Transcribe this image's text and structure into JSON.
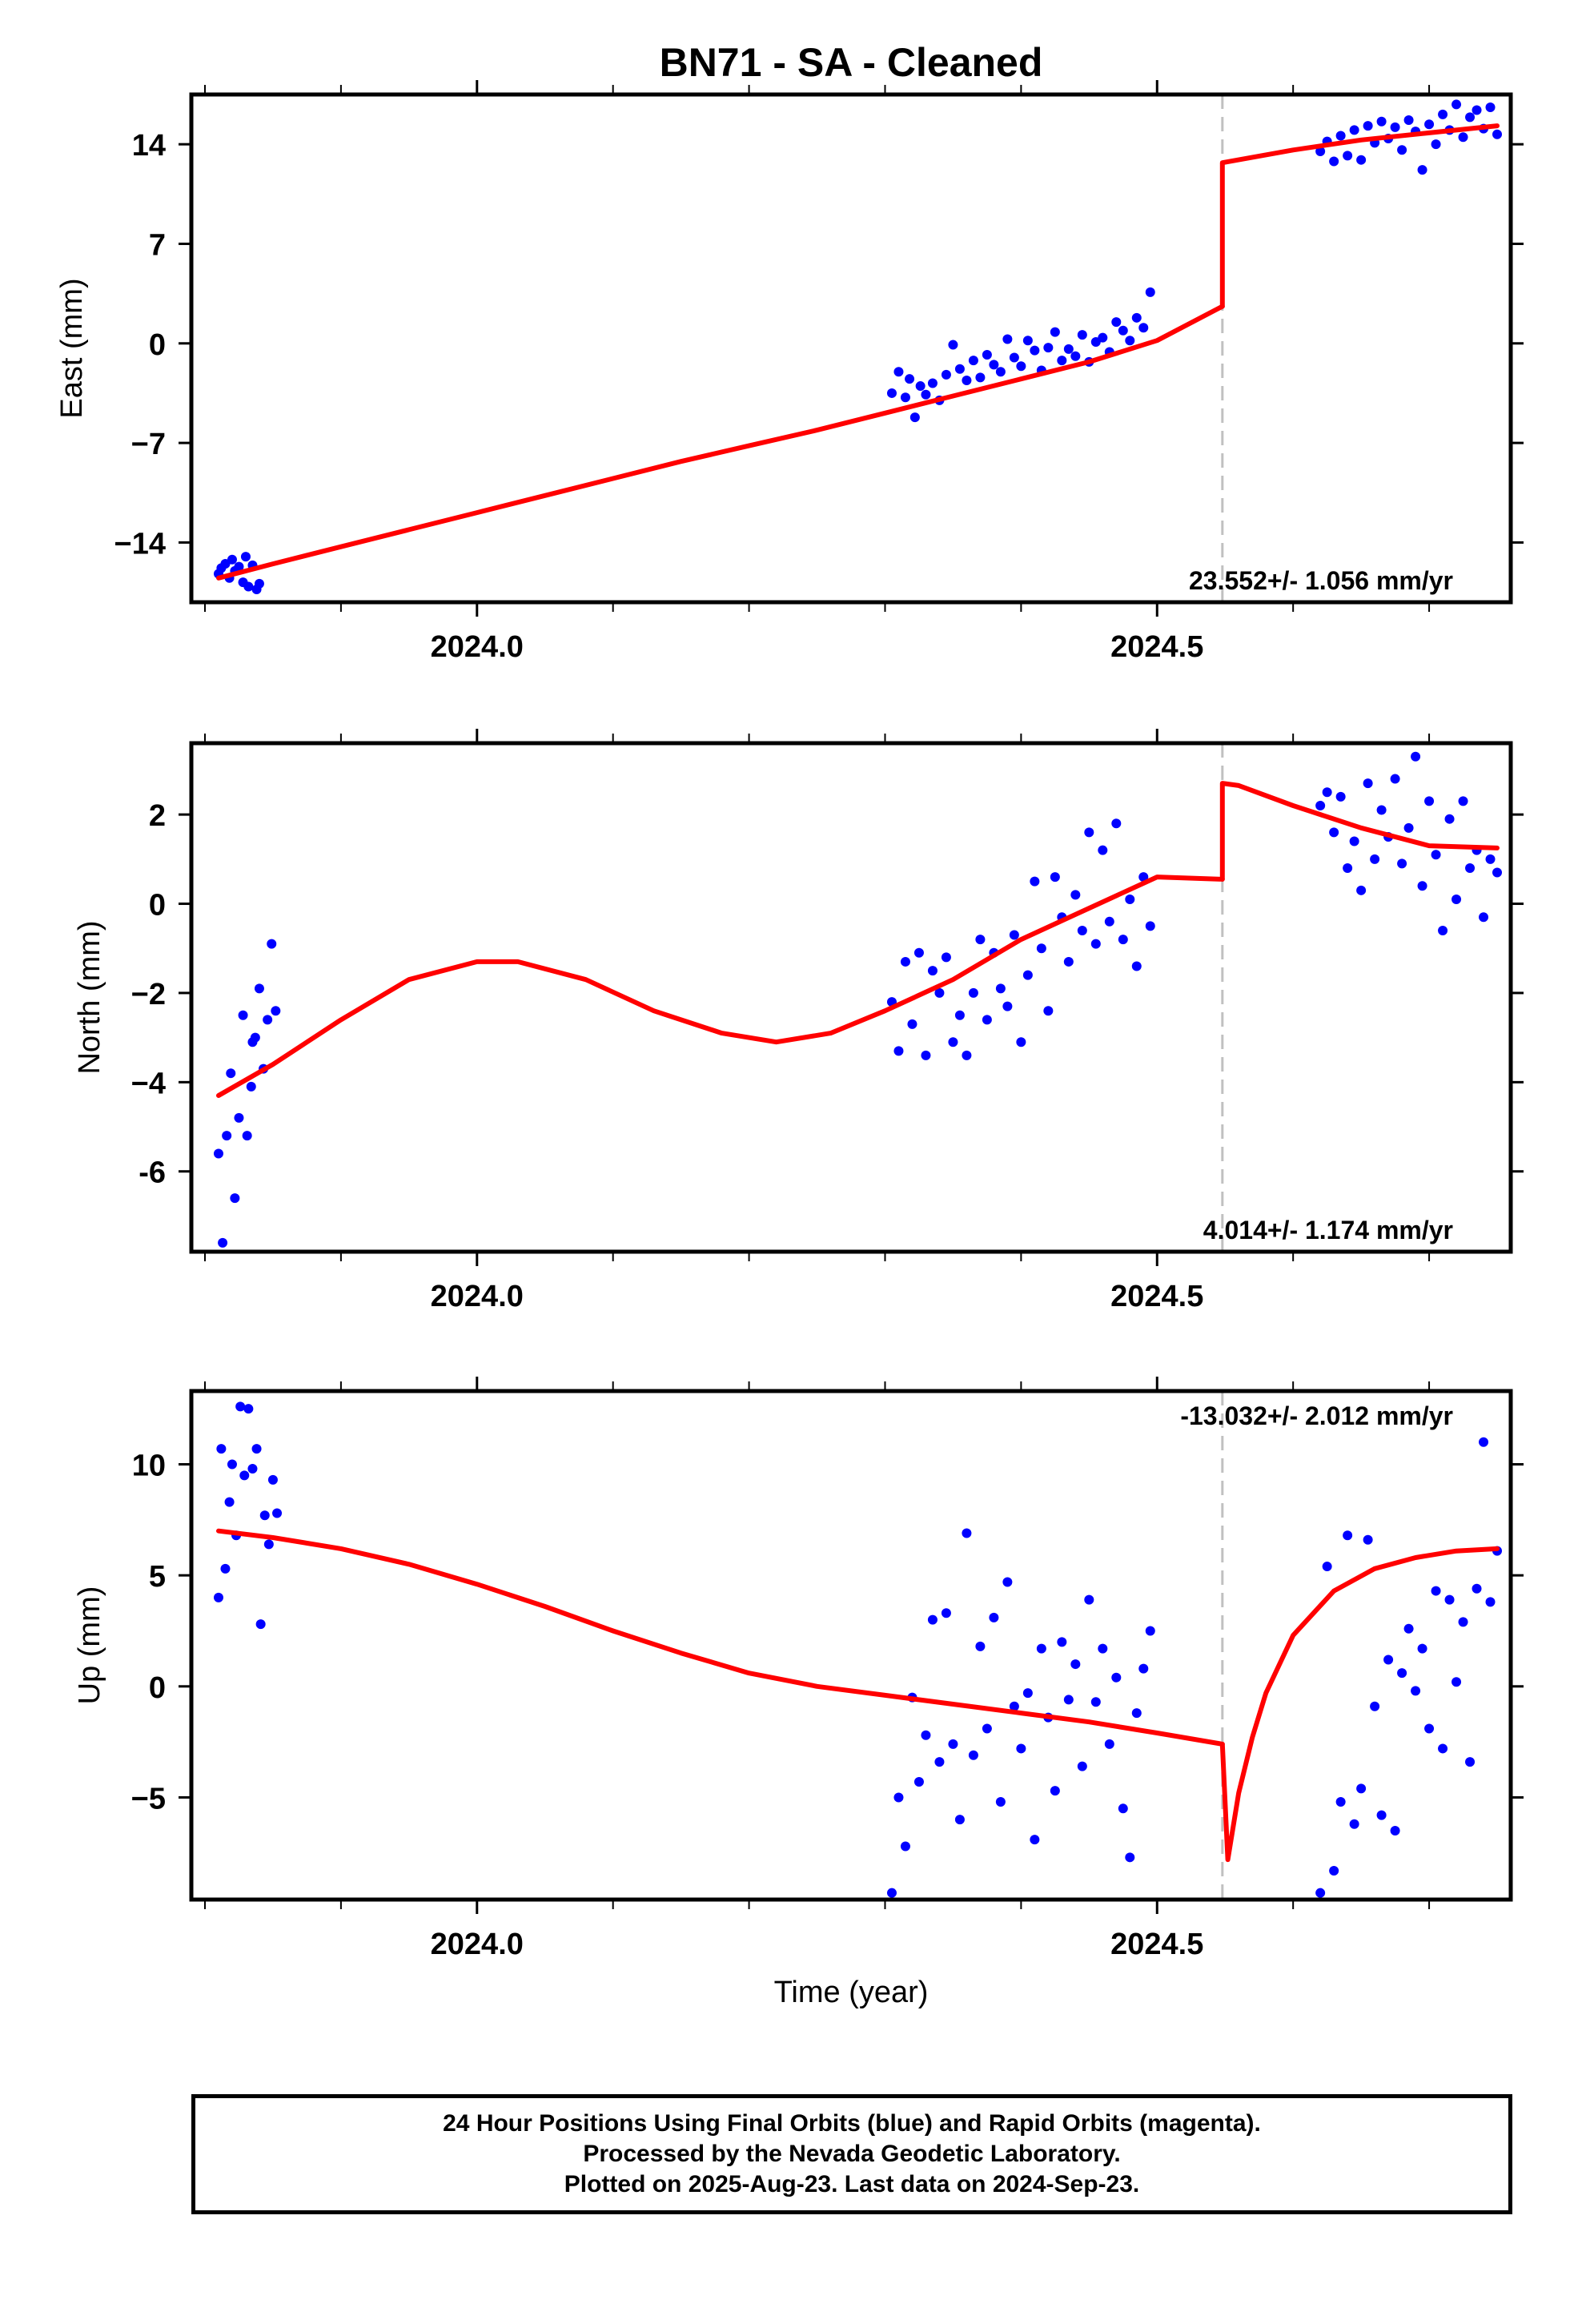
{
  "title": "BN71  - SA - Cleaned",
  "x_axis_label": "Time (year)",
  "caption": [
    "24 Hour Positions Using Final Orbits (blue) and Rapid Orbits (magenta).",
    "Processed by the Nevada Geodetic Laboratory.",
    "Plotted on 2025-Aug-23. Last data on 2024-Sep-23."
  ],
  "colors": {
    "data_points": "#0000ff",
    "model_line": "#ff0000",
    "event_line": "#c0c0c0",
    "axes": "#000000"
  },
  "chart_data": [
    {
      "type": "scatter",
      "ylabel": "East (mm)",
      "xlim": [
        2023.79,
        2024.76
      ],
      "ylim": [
        -18.2,
        17.5
      ],
      "x_ticks": [
        2024.0,
        2024.5
      ],
      "y_ticks": [
        14,
        7,
        0,
        -7,
        -14
      ],
      "y_tick_labels": [
        "14",
        "7",
        "0",
        "−7",
        "−14"
      ],
      "velocity_label": "23.552+/- 1.056 mm/yr",
      "event_x": 2024.548,
      "series": [
        {
          "kind": "points",
          "x": [
            2023.81,
            2023.812,
            2023.815,
            2023.818,
            2023.82,
            2023.822,
            2023.825,
            2023.828,
            2023.83,
            2023.832,
            2023.835,
            2023.838,
            2023.84
          ],
          "y": [
            -16.2,
            -15.8,
            -15.5,
            -16.5,
            -15.2,
            -16.0,
            -15.7,
            -16.8,
            -15.0,
            -17.1,
            -15.6,
            -17.3,
            -16.9
          ]
        },
        {
          "kind": "points",
          "x": [
            2024.305,
            2024.31,
            2024.315,
            2024.318,
            2024.322,
            2024.326,
            2024.33,
            2024.335,
            2024.34,
            2024.345,
            2024.35,
            2024.355,
            2024.36,
            2024.365,
            2024.37,
            2024.375,
            2024.38,
            2024.385,
            2024.39,
            2024.395,
            2024.4,
            2024.405,
            2024.41,
            2024.415,
            2024.42,
            2024.425,
            2024.43,
            2024.435,
            2024.44,
            2024.445,
            2024.45,
            2024.455,
            2024.46,
            2024.465,
            2024.47,
            2024.475,
            2024.48,
            2024.485,
            2024.49,
            2024.495
          ],
          "y": [
            -3.5,
            -2.0,
            -3.8,
            -2.5,
            -5.2,
            -3.0,
            -3.6,
            -2.8,
            -4.0,
            -2.2,
            -0.1,
            -1.8,
            -2.6,
            -1.2,
            -2.4,
            -0.8,
            -1.5,
            -2.0,
            0.3,
            -1.0,
            -1.6,
            0.2,
            -0.5,
            -1.9,
            -0.3,
            0.8,
            -1.2,
            -0.4,
            -0.9,
            0.6,
            -1.3,
            0.1,
            0.4,
            -0.6,
            1.5,
            0.9,
            0.2,
            1.8,
            1.1,
            3.6
          ]
        },
        {
          "kind": "points",
          "x": [
            2024.62,
            2024.625,
            2024.63,
            2024.635,
            2024.64,
            2024.645,
            2024.65,
            2024.655,
            2024.66,
            2024.665,
            2024.67,
            2024.675,
            2024.68,
            2024.685,
            2024.69,
            2024.695,
            2024.7,
            2024.705,
            2024.71,
            2024.715,
            2024.72,
            2024.725,
            2024.73,
            2024.735,
            2024.74,
            2024.745,
            2024.75
          ],
          "y": [
            13.5,
            14.2,
            12.8,
            14.6,
            13.2,
            15.0,
            12.9,
            15.3,
            14.1,
            15.6,
            14.4,
            15.2,
            13.6,
            15.7,
            14.9,
            12.2,
            15.4,
            14.0,
            16.1,
            15.0,
            16.8,
            14.5,
            15.9,
            16.4,
            15.1,
            16.6,
            14.7
          ]
        },
        {
          "kind": "line",
          "x": [
            2023.81,
            2023.85,
            2023.9,
            2023.95,
            2024.0,
            2024.05,
            2024.1,
            2024.15,
            2024.2,
            2024.25,
            2024.3,
            2024.35,
            2024.4,
            2024.45,
            2024.5,
            2024.548
          ],
          "y": [
            -16.5,
            -15.5,
            -14.3,
            -13.1,
            -11.9,
            -10.7,
            -9.5,
            -8.3,
            -7.2,
            -6.1,
            -4.9,
            -3.7,
            -2.5,
            -1.3,
            0.2,
            2.6
          ]
        },
        {
          "kind": "line",
          "x": [
            2024.548,
            2024.548,
            2024.6,
            2024.65,
            2024.7,
            2024.75
          ],
          "y": [
            2.6,
            12.7,
            13.6,
            14.3,
            14.8,
            15.3
          ]
        }
      ]
    },
    {
      "type": "scatter",
      "ylabel": "North (mm)",
      "xlim": [
        2023.79,
        2024.76
      ],
      "ylim": [
        -7.8,
        3.6
      ],
      "x_ticks": [
        2024.0,
        2024.5
      ],
      "y_ticks": [
        2,
        0,
        -2,
        -4,
        -6
      ],
      "y_tick_labels": [
        "2",
        "0",
        "−2",
        "−4",
        "-6"
      ],
      "velocity_label": "4.014+/- 1.174 mm/yr",
      "event_x": 2024.548,
      "series": [
        {
          "kind": "points",
          "x": [
            2023.81,
            2023.813,
            2023.816,
            2023.819,
            2023.822,
            2023.825,
            2023.828,
            2023.831,
            2023.834,
            2023.837,
            2023.84,
            2023.843
          ],
          "y": [
            -5.6,
            -7.6,
            -5.2,
            -3.8,
            -6.6,
            -4.8,
            -2.5,
            -5.2,
            -4.1,
            -3.0,
            -1.9,
            -3.7
          ]
        },
        {
          "kind": "points",
          "x": [
            2023.846,
            2023.849,
            2023.852,
            2023.835
          ],
          "y": [
            -2.6,
            -0.9,
            -2.4,
            -3.1
          ]
        },
        {
          "kind": "points",
          "x": [
            2024.305,
            2024.31,
            2024.315,
            2024.32,
            2024.325,
            2024.33,
            2024.335,
            2024.34,
            2024.345,
            2024.35,
            2024.355,
            2024.36,
            2024.365,
            2024.37,
            2024.375,
            2024.38,
            2024.385,
            2024.39,
            2024.395,
            2024.4,
            2024.405,
            2024.41,
            2024.415,
            2024.42,
            2024.425,
            2024.43,
            2024.435,
            2024.44,
            2024.445,
            2024.45,
            2024.455,
            2024.46,
            2024.465,
            2024.47,
            2024.475,
            2024.48,
            2024.485,
            2024.49,
            2024.495
          ],
          "y": [
            -2.2,
            -3.3,
            -1.3,
            -2.7,
            -1.1,
            -3.4,
            -1.5,
            -2.0,
            -1.2,
            -3.1,
            -2.5,
            -3.4,
            -2.0,
            -0.8,
            -2.6,
            -1.1,
            -1.9,
            -2.3,
            -0.7,
            -3.1,
            -1.6,
            0.5,
            -1.0,
            -2.4,
            0.6,
            -0.3,
            -1.3,
            0.2,
            -0.6,
            1.6,
            -0.9,
            1.2,
            -0.4,
            1.8,
            -0.8,
            0.1,
            -1.4,
            0.6,
            -0.5
          ]
        },
        {
          "kind": "points",
          "x": [
            2024.62,
            2024.625,
            2024.63,
            2024.635,
            2024.64,
            2024.645,
            2024.65,
            2024.655,
            2024.66,
            2024.665,
            2024.67,
            2024.675,
            2024.68,
            2024.685,
            2024.69,
            2024.695,
            2024.7,
            2024.705,
            2024.71,
            2024.715,
            2024.72,
            2024.725,
            2024.73,
            2024.735,
            2024.74,
            2024.745,
            2024.75
          ],
          "y": [
            2.2,
            2.5,
            1.6,
            2.4,
            0.8,
            1.4,
            0.3,
            2.7,
            1.0,
            2.1,
            1.5,
            2.8,
            0.9,
            1.7,
            3.3,
            0.4,
            2.3,
            1.1,
            -0.6,
            1.9,
            0.1,
            2.3,
            0.8,
            1.2,
            -0.3,
            1.0,
            0.7
          ]
        },
        {
          "kind": "line",
          "x": [
            2023.81,
            2023.85,
            2023.9,
            2023.95,
            2024.0,
            2024.03,
            2024.08,
            2024.13,
            2024.18,
            2024.22,
            2024.26,
            2024.3,
            2024.35,
            2024.4,
            2024.45,
            2024.5,
            2024.548
          ],
          "y": [
            -4.3,
            -3.6,
            -2.6,
            -1.7,
            -1.3,
            -1.3,
            -1.7,
            -2.4,
            -2.9,
            -3.1,
            -2.9,
            -2.4,
            -1.7,
            -0.8,
            -0.1,
            0.6,
            0.55
          ]
        },
        {
          "kind": "line",
          "x": [
            2024.548,
            2024.548,
            2024.56,
            2024.6,
            2024.65,
            2024.7,
            2024.75
          ],
          "y": [
            0.55,
            2.7,
            2.65,
            2.2,
            1.7,
            1.3,
            1.25
          ]
        }
      ]
    },
    {
      "type": "scatter",
      "ylabel": "Up (mm)",
      "xlim": [
        2023.79,
        2024.76
      ],
      "ylim": [
        -9.6,
        13.3
      ],
      "x_ticks": [
        2024.0,
        2024.5
      ],
      "y_ticks": [
        10,
        5,
        0,
        -5
      ],
      "y_tick_labels": [
        "10",
        "5",
        "0",
        "−5"
      ],
      "velocity_label": "-13.032+/- 2.012 mm/yr",
      "event_x": 2024.548,
      "series": [
        {
          "kind": "points",
          "x": [
            2023.81,
            2023.812,
            2023.815,
            2023.818,
            2023.82,
            2023.823,
            2023.826,
            2023.829,
            2023.832,
            2023.835,
            2023.838,
            2023.841,
            2023.844,
            2023.847,
            2023.85,
            2023.853
          ],
          "y": [
            4.0,
            10.7,
            5.3,
            8.3,
            10.0,
            6.8,
            12.6,
            9.5,
            12.5,
            9.8,
            10.7,
            2.8,
            7.7,
            6.4,
            9.3,
            7.8
          ]
        },
        {
          "kind": "points",
          "x": [
            2024.305,
            2024.31,
            2024.315,
            2024.32,
            2024.325,
            2024.33,
            2024.335,
            2024.34,
            2024.345,
            2024.35,
            2024.355,
            2024.36,
            2024.365,
            2024.37,
            2024.375,
            2024.38,
            2024.385,
            2024.39,
            2024.395,
            2024.4,
            2024.405,
            2024.41,
            2024.415,
            2024.42,
            2024.425,
            2024.43,
            2024.435,
            2024.44,
            2024.445,
            2024.45,
            2024.455,
            2024.46,
            2024.465,
            2024.47,
            2024.475,
            2024.48,
            2024.485,
            2024.49,
            2024.495
          ],
          "y": [
            -9.3,
            -5.0,
            -7.2,
            -0.5,
            -4.3,
            -2.2,
            3.0,
            -3.4,
            3.3,
            -2.6,
            -6.0,
            6.9,
            -3.1,
            1.8,
            -1.9,
            3.1,
            -5.2,
            4.7,
            -0.9,
            -2.8,
            -0.3,
            -6.9,
            1.7,
            -1.4,
            -4.7,
            2.0,
            -0.6,
            1.0,
            -3.6,
            3.9,
            -0.7,
            1.7,
            -2.6,
            0.4,
            -5.5,
            -7.7,
            -1.2,
            0.8,
            2.5
          ]
        },
        {
          "kind": "points",
          "x": [
            2024.62,
            2024.625,
            2024.63,
            2024.635,
            2024.64,
            2024.645,
            2024.65,
            2024.655,
            2024.66,
            2024.665,
            2024.67,
            2024.675,
            2024.68,
            2024.685,
            2024.69,
            2024.695,
            2024.7,
            2024.705,
            2024.71,
            2024.715,
            2024.72,
            2024.725,
            2024.73,
            2024.735,
            2024.74,
            2024.745,
            2024.75
          ],
          "y": [
            -9.3,
            5.4,
            -8.3,
            -5.2,
            6.8,
            -6.2,
            -4.6,
            6.6,
            -0.9,
            -5.8,
            1.2,
            -6.5,
            0.6,
            2.6,
            -0.2,
            1.7,
            -1.9,
            4.3,
            -2.8,
            3.9,
            0.2,
            2.9,
            -3.4,
            4.4,
            11.0,
            3.8,
            6.1
          ]
        },
        {
          "kind": "line",
          "x": [
            2023.81,
            2023.85,
            2023.9,
            2023.95,
            2024.0,
            2024.05,
            2024.1,
            2024.15,
            2024.2,
            2024.25,
            2024.3,
            2024.35,
            2024.4,
            2024.45,
            2024.5,
            2024.548
          ],
          "y": [
            7.0,
            6.7,
            6.2,
            5.5,
            4.6,
            3.6,
            2.5,
            1.5,
            0.6,
            0.0,
            -0.4,
            -0.8,
            -1.2,
            -1.6,
            -2.1,
            -2.6
          ]
        },
        {
          "kind": "line",
          "x": [
            2024.548,
            2024.552,
            2024.56,
            2024.57,
            2024.58,
            2024.6,
            2024.63,
            2024.66,
            2024.69,
            2024.72,
            2024.75
          ],
          "y": [
            -2.6,
            -7.8,
            -4.8,
            -2.3,
            -0.3,
            2.3,
            4.3,
            5.3,
            5.8,
            6.1,
            6.2
          ]
        }
      ]
    }
  ]
}
